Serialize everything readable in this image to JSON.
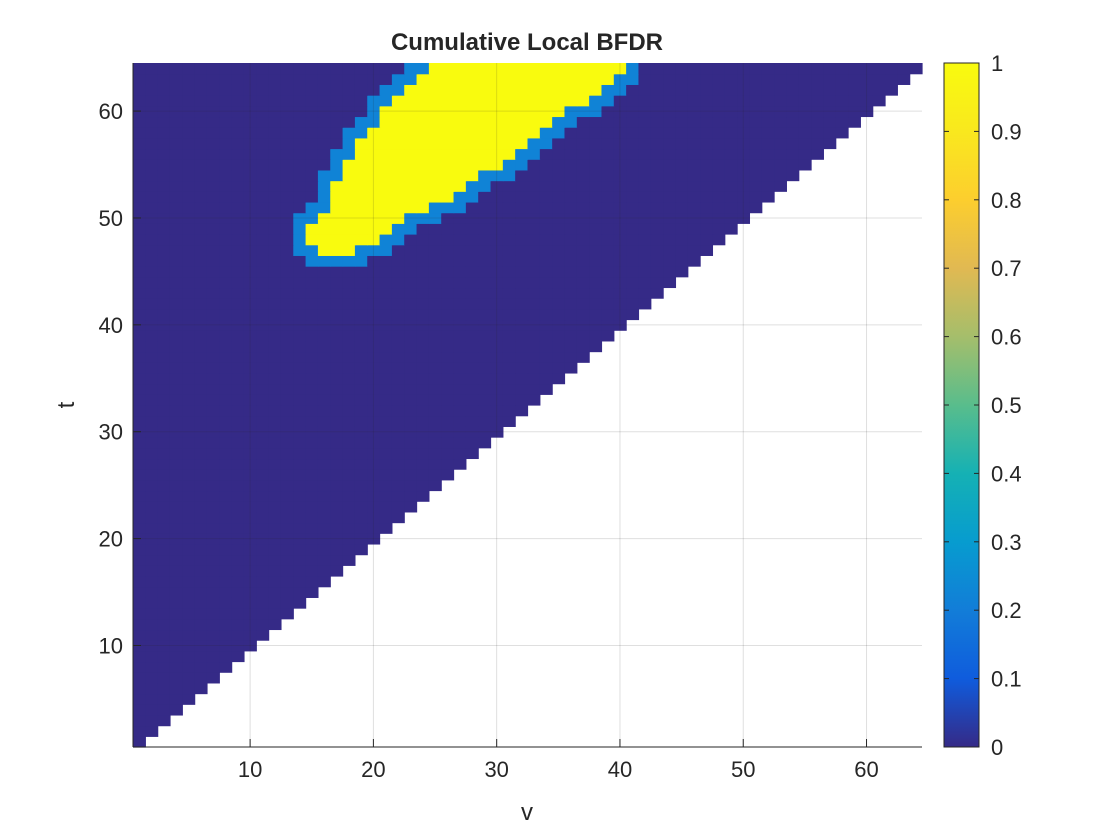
{
  "chart_data": {
    "type": "heatmap",
    "title": "Cumulative Local BFDR",
    "xlabel": "v",
    "ylabel": "t",
    "xlim": [
      1,
      64
    ],
    "ylim": [
      1,
      64
    ],
    "xticks": [
      10,
      20,
      30,
      40,
      50,
      60
    ],
    "yticks": [
      10,
      20,
      30,
      40,
      50,
      60
    ],
    "grid": true,
    "colormap": "parula",
    "clim": [
      0,
      1
    ],
    "colorbar": {
      "location": "right",
      "ticks": [
        0,
        0.1,
        0.2,
        0.3,
        0.4,
        0.5,
        0.6,
        0.7,
        0.8,
        0.9,
        1
      ],
      "tick_labels": [
        "0",
        "0.1",
        "0.2",
        "0.3",
        "0.4",
        "0.5",
        "0.6",
        "0.7",
        "0.8",
        "0.9",
        "1"
      ]
    },
    "domain": "cells defined only where t >= v; empty (white) elsewhere",
    "background_value": 0,
    "high_region": {
      "value": 1,
      "rows": [
        {
          "t": 47,
          "v_start": 16,
          "v_end": 18
        },
        {
          "t": 48,
          "v_start": 15,
          "v_end": 20
        },
        {
          "t": 49,
          "v_start": 15,
          "v_end": 21
        },
        {
          "t": 50,
          "v_start": 16,
          "v_end": 22
        },
        {
          "t": 51,
          "v_start": 17,
          "v_end": 24
        },
        {
          "t": 52,
          "v_start": 17,
          "v_end": 26
        },
        {
          "t": 53,
          "v_start": 17,
          "v_end": 27
        },
        {
          "t": 54,
          "v_start": 18,
          "v_end": 28
        },
        {
          "t": 55,
          "v_start": 18,
          "v_end": 30
        },
        {
          "t": 56,
          "v_start": 19,
          "v_end": 31
        },
        {
          "t": 57,
          "v_start": 19,
          "v_end": 32
        },
        {
          "t": 58,
          "v_start": 20,
          "v_end": 33
        },
        {
          "t": 59,
          "v_start": 21,
          "v_end": 34
        },
        {
          "t": 60,
          "v_start": 21,
          "v_end": 35
        },
        {
          "t": 61,
          "v_start": 22,
          "v_end": 37
        },
        {
          "t": 62,
          "v_start": 23,
          "v_end": 38
        },
        {
          "t": 63,
          "v_start": 24,
          "v_end": 39
        },
        {
          "t": 64,
          "v_start": 25,
          "v_end": 40
        }
      ]
    }
  }
}
